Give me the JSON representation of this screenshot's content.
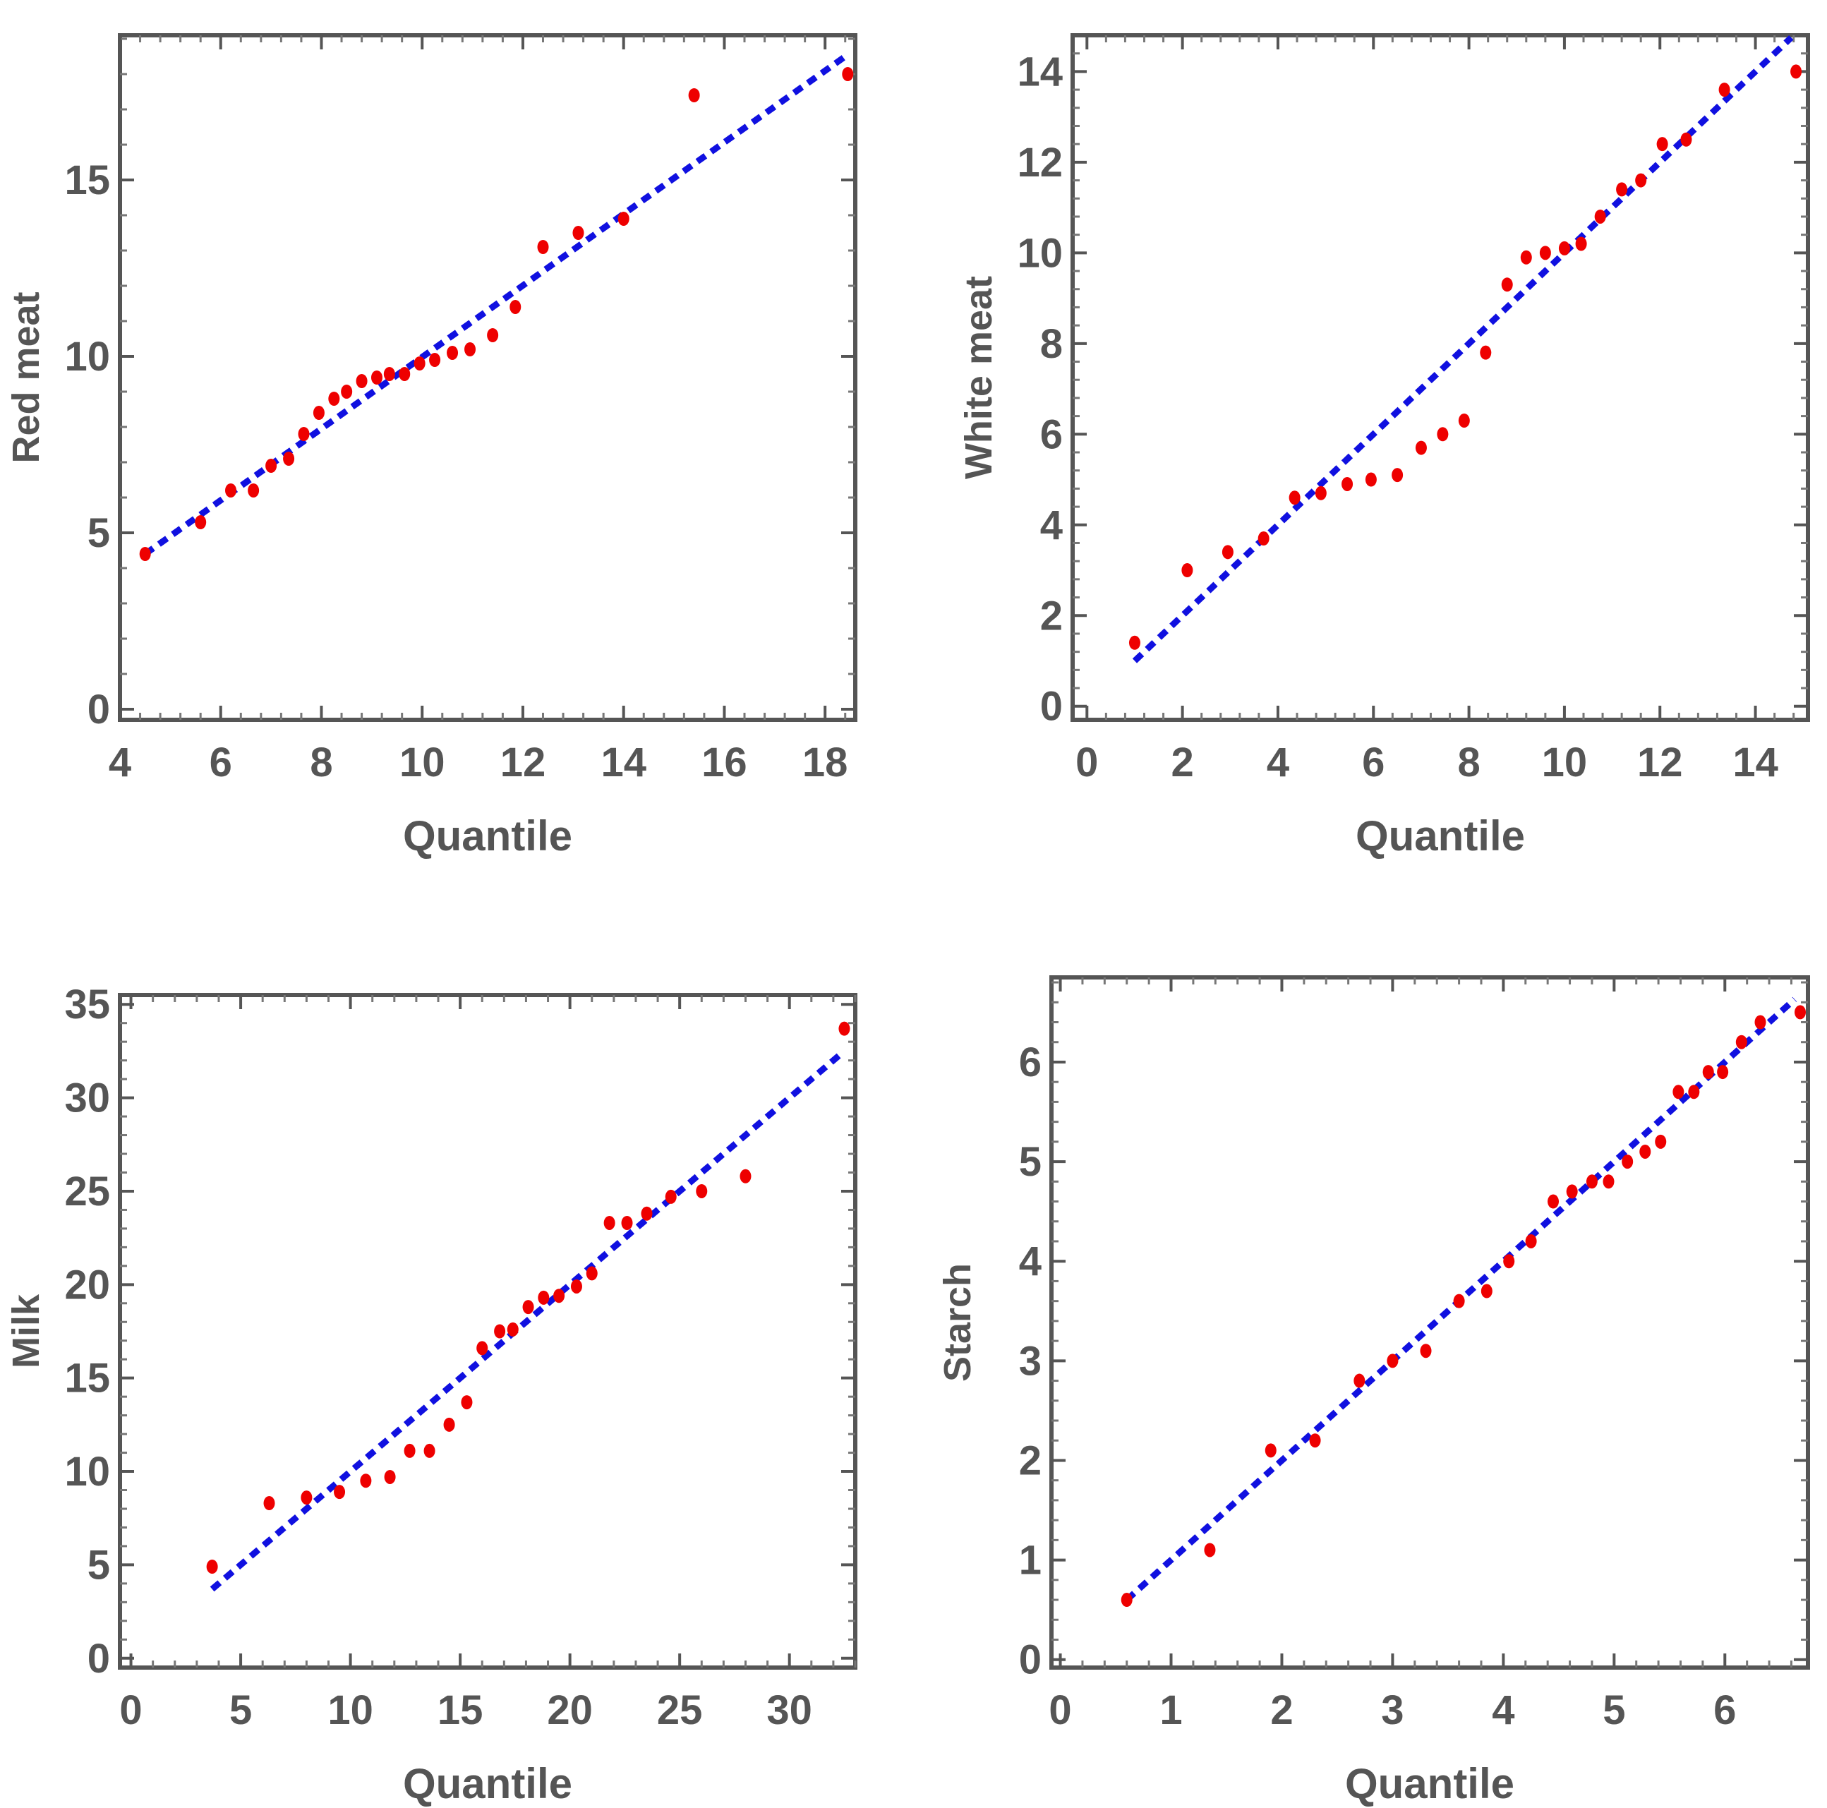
{
  "colors": {
    "points": "#ee0000",
    "fit_line": "#1010e0",
    "axes": "#555555"
  },
  "chart_data": [
    {
      "type": "scatter",
      "title": "",
      "xlabel": "Quantile",
      "ylabel": "Red meat",
      "xlim": [
        4,
        18.6
      ],
      "ylim": [
        -0.3,
        19.1
      ],
      "xticks": [
        4,
        6,
        8,
        10,
        12,
        14,
        16,
        18
      ],
      "yticks": [
        0,
        5,
        10,
        15
      ],
      "series": [
        {
          "name": "data",
          "x": [
            4.5,
            5.6,
            6.2,
            6.65,
            7.0,
            7.35,
            7.65,
            7.95,
            8.25,
            8.5,
            8.8,
            9.1,
            9.35,
            9.65,
            9.95,
            10.25,
            10.6,
            10.95,
            11.4,
            11.85,
            12.4,
            13.1,
            14.0,
            15.4,
            18.45
          ],
          "y": [
            4.4,
            5.3,
            6.2,
            6.2,
            6.9,
            7.1,
            7.8,
            8.4,
            8.8,
            9.0,
            9.3,
            9.4,
            9.5,
            9.5,
            9.8,
            9.9,
            10.1,
            10.2,
            10.6,
            11.4,
            13.1,
            13.5,
            13.9,
            17.4,
            18.0
          ]
        },
        {
          "name": "reference line",
          "x": [
            4.5,
            18.4
          ],
          "y": [
            4.4,
            18.5
          ]
        }
      ]
    },
    {
      "type": "scatter",
      "title": "",
      "xlabel": "Quantile",
      "ylabel": "White meat",
      "xlim": [
        -0.3,
        15.1
      ],
      "ylim": [
        -0.3,
        14.8
      ],
      "xticks": [
        0,
        2,
        4,
        6,
        8,
        10,
        12,
        14
      ],
      "yticks": [
        0,
        2,
        4,
        6,
        8,
        10,
        12,
        14
      ],
      "series": [
        {
          "name": "data",
          "x": [
            1.0,
            2.1,
            2.95,
            3.7,
            4.35,
            4.9,
            5.45,
            5.95,
            6.5,
            7.0,
            7.45,
            7.9,
            8.35,
            8.8,
            9.2,
            9.6,
            10.0,
            10.35,
            10.75,
            11.2,
            11.6,
            12.05,
            12.55,
            13.35,
            14.85
          ],
          "y": [
            1.4,
            3.0,
            3.4,
            3.7,
            4.6,
            4.7,
            4.9,
            5.0,
            5.1,
            5.7,
            6.0,
            6.3,
            7.8,
            9.3,
            9.9,
            10.0,
            10.1,
            10.2,
            10.8,
            11.4,
            11.6,
            12.4,
            12.5,
            13.6,
            14.0
          ]
        },
        {
          "name": "reference line",
          "x": [
            1.0,
            14.75
          ],
          "y": [
            1.0,
            14.75
          ]
        }
      ]
    },
    {
      "type": "scatter",
      "title": "",
      "xlabel": "Quantile",
      "ylabel": "Milk",
      "xlim": [
        -0.5,
        33.0
      ],
      "ylim": [
        -0.5,
        35.5
      ],
      "xticks": [
        0,
        5,
        10,
        15,
        20,
        25,
        30
      ],
      "yticks": [
        0,
        5,
        10,
        15,
        20,
        25,
        30,
        35
      ],
      "series": [
        {
          "name": "data",
          "x": [
            3.7,
            6.3,
            8.0,
            9.5,
            10.7,
            11.8,
            12.7,
            13.6,
            14.5,
            15.3,
            16.0,
            16.8,
            17.4,
            18.1,
            18.8,
            19.5,
            20.3,
            21.0,
            21.8,
            22.6,
            23.5,
            24.6,
            26.0,
            28.0,
            32.5
          ],
          "y": [
            4.9,
            8.3,
            8.6,
            8.9,
            9.5,
            9.7,
            11.1,
            11.1,
            12.5,
            13.7,
            16.6,
            17.5,
            17.6,
            18.8,
            19.3,
            19.4,
            19.9,
            20.6,
            23.3,
            23.3,
            23.8,
            24.7,
            25.0,
            25.8,
            33.7
          ]
        },
        {
          "name": "reference line",
          "x": [
            3.7,
            32.4
          ],
          "y": [
            3.7,
            32.4
          ]
        }
      ]
    },
    {
      "type": "scatter",
      "title": "",
      "xlabel": "Quantile",
      "ylabel": "Starch",
      "xlim": [
        -0.08,
        6.75
      ],
      "ylim": [
        -0.08,
        6.85
      ],
      "xticks": [
        0,
        1,
        2,
        3,
        4,
        5,
        6
      ],
      "yticks": [
        0,
        1,
        2,
        3,
        4,
        5,
        6
      ],
      "series": [
        {
          "name": "data",
          "x": [
            0.6,
            1.35,
            1.9,
            2.3,
            2.7,
            3.0,
            3.3,
            3.6,
            3.85,
            4.05,
            4.25,
            4.45,
            4.62,
            4.8,
            4.95,
            5.12,
            5.28,
            5.42,
            5.58,
            5.72,
            5.85,
            5.98,
            6.15,
            6.32,
            6.68
          ],
          "y": [
            0.6,
            1.1,
            2.1,
            2.2,
            2.8,
            3.0,
            3.1,
            3.6,
            3.7,
            4.0,
            4.2,
            4.6,
            4.7,
            4.8,
            4.8,
            5.0,
            5.1,
            5.2,
            5.7,
            5.7,
            5.9,
            5.9,
            6.2,
            6.4,
            6.5
          ]
        },
        {
          "name": "reference line",
          "x": [
            0.6,
            6.63
          ],
          "y": [
            0.6,
            6.63
          ]
        }
      ]
    }
  ]
}
